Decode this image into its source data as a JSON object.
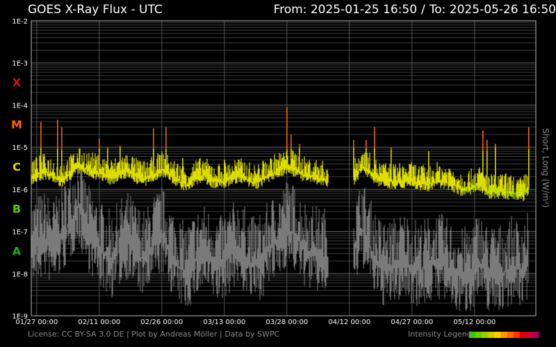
{
  "header": {
    "title": "GOES X-Ray Flux - UTC",
    "from_label": "From:",
    "from_value": "2025-01-25 16:50",
    "to_label": "To:",
    "to_value": "2025-05-26 16:50"
  },
  "footer": {
    "license": "License: CC BY-SA 3.0 DE | Plot by Andreas Möller | Data by SWPC",
    "legend_label": "Intensity Legend"
  },
  "colors": {
    "short_wave": "#7a7a7a",
    "class_A": "#22aa22",
    "class_B": "#66cc00",
    "class_C": "#dddd00",
    "class_M": "#ff6600",
    "class_X": "#dd1111",
    "legend": [
      "#33cc00",
      "#66cc00",
      "#99cc00",
      "#cccc00",
      "#ffcc00",
      "#ff9900",
      "#ff6600",
      "#ff3300",
      "#dd0000",
      "#cc0033",
      "#aa0055"
    ]
  },
  "chart_data": {
    "type": "line",
    "ylabel": "Short, Long (W/m²)",
    "y_scale": "log",
    "ylim": [
      1e-09,
      0.01
    ],
    "y_ticks": [
      "1E-2",
      "1E-3",
      "1E-4",
      "1E-5",
      "1E-6",
      "1E-7",
      "1E-8",
      "1E-9"
    ],
    "flare_classes": [
      {
        "label": "X",
        "flux": 0.00035
      },
      {
        "label": "M",
        "flux": 3.5e-05
      },
      {
        "label": "C",
        "flux": 3.5e-06
      },
      {
        "label": "B",
        "flux": 3.5e-07
      },
      {
        "label": "A",
        "flux": 3.5e-08
      }
    ],
    "x_ticks": [
      "01/27 00:00",
      "02/11 00:00",
      "02/26 00:00",
      "03/13 00:00",
      "03/28 00:00",
      "04/12 00:00",
      "04/27 00:00",
      "05/12 00:00"
    ],
    "x_tick_days": [
      "2025-01-27",
      "2025-02-11",
      "2025-02-26",
      "2025-03-13",
      "2025-03-28",
      "2025-04-12",
      "2025-04-27",
      "2025-05-12"
    ],
    "xlim": [
      "2025-01-25",
      "2025-05-26"
    ],
    "grid": true,
    "series": [
      {
        "channel": "long",
        "x": [
          "2025-01-25",
          "2025-01-27",
          "2025-01-29",
          "2025-01-31",
          "2025-02-02",
          "2025-02-04",
          "2025-02-06",
          "2025-02-08",
          "2025-02-10",
          "2025-02-12",
          "2025-02-14",
          "2025-02-16",
          "2025-02-18",
          "2025-02-20",
          "2025-02-22",
          "2025-02-24",
          "2025-02-26",
          "2025-02-28",
          "2025-03-02",
          "2025-03-04",
          "2025-03-06",
          "2025-03-08",
          "2025-03-10",
          "2025-03-12",
          "2025-03-14",
          "2025-03-16",
          "2025-03-18",
          "2025-03-20",
          "2025-03-22",
          "2025-03-24",
          "2025-03-26",
          "2025-03-28",
          "2025-03-30",
          "2025-04-01",
          "2025-04-03",
          "2025-04-05",
          "2025-04-07",
          "2025-04-09",
          "2025-04-11",
          "2025-04-13",
          "2025-04-15",
          "2025-04-17",
          "2025-04-19",
          "2025-04-21",
          "2025-04-23",
          "2025-04-25",
          "2025-04-27",
          "2025-04-29",
          "2025-05-01",
          "2025-05-03",
          "2025-05-05",
          "2025-05-07",
          "2025-05-09",
          "2025-05-11",
          "2025-05-13",
          "2025-05-15",
          "2025-05-17",
          "2025-05-19",
          "2025-05-21",
          "2025-05-23",
          "2025-05-25"
        ],
        "y": [
          1.8e-06,
          2.2e-06,
          2.6e-06,
          2e-06,
          1.6e-06,
          2.4e-06,
          3.5e-06,
          3e-06,
          2.6e-06,
          2.2e-06,
          1.9e-06,
          2.4e-06,
          2.8e-06,
          2e-06,
          1.7e-06,
          2.2e-06,
          3e-06,
          2.2e-06,
          1.6e-06,
          1.3e-06,
          1.8e-06,
          2.2e-06,
          1.6e-06,
          1.5e-06,
          1.7e-06,
          2.1e-06,
          1.8e-06,
          1.4e-06,
          1.7e-06,
          2.2e-06,
          2.8e-06,
          3.4e-06,
          3e-06,
          2.2e-06,
          2e-06,
          1.8e-06,
          1.6e-06,
          null,
          null,
          1.8e-06,
          3.5e-06,
          2.6e-06,
          1.7e-06,
          1.6e-06,
          1.5e-06,
          1.6e-06,
          1.6e-06,
          1.4e-06,
          1.3e-06,
          1.6e-06,
          1.5e-06,
          1.3e-06,
          1e-06,
          1.1e-06,
          1.3e-06,
          9e-07,
          8.5e-07,
          9e-07,
          8e-07,
          7e-07,
          1e-06
        ],
        "peaks": [
          {
            "x": "2025-01-28",
            "y": 4e-05
          },
          {
            "x": "2025-02-01",
            "y": 4.5e-05
          },
          {
            "x": "2025-02-02",
            "y": 3e-05
          },
          {
            "x": "2025-02-11",
            "y": 1.6e-05
          },
          {
            "x": "2025-02-13",
            "y": 1e-05
          },
          {
            "x": "2025-02-16",
            "y": 1.1e-05
          },
          {
            "x": "2025-02-24",
            "y": 2.8e-05
          },
          {
            "x": "2025-02-27",
            "y": 3e-05
          },
          {
            "x": "2025-03-03",
            "y": 5.5e-06
          },
          {
            "x": "2025-03-13",
            "y": 5e-06
          },
          {
            "x": "2025-03-28",
            "y": 9e-05
          },
          {
            "x": "2025-03-29",
            "y": 2e-05
          },
          {
            "x": "2025-03-31",
            "y": 1.2e-05
          },
          {
            "x": "2025-04-13",
            "y": 1.5e-05
          },
          {
            "x": "2025-04-16",
            "y": 1.5e-05
          },
          {
            "x": "2025-04-18",
            "y": 3e-05
          },
          {
            "x": "2025-04-22",
            "y": 1e-05
          },
          {
            "x": "2025-05-01",
            "y": 8e-06
          },
          {
            "x": "2025-05-14",
            "y": 2.5e-05
          },
          {
            "x": "2025-05-15",
            "y": 1.5e-05
          },
          {
            "x": "2025-05-17",
            "y": 1.2e-05
          },
          {
            "x": "2025-05-25",
            "y": 3e-05
          }
        ]
      },
      {
        "channel": "short",
        "x": [
          "2025-01-25",
          "2025-01-27",
          "2025-01-29",
          "2025-01-31",
          "2025-02-02",
          "2025-02-04",
          "2025-02-06",
          "2025-02-08",
          "2025-02-10",
          "2025-02-12",
          "2025-02-14",
          "2025-02-16",
          "2025-02-18",
          "2025-02-20",
          "2025-02-22",
          "2025-02-24",
          "2025-02-26",
          "2025-02-28",
          "2025-03-02",
          "2025-03-04",
          "2025-03-06",
          "2025-03-08",
          "2025-03-10",
          "2025-03-12",
          "2025-03-14",
          "2025-03-16",
          "2025-03-18",
          "2025-03-20",
          "2025-03-22",
          "2025-03-24",
          "2025-03-26",
          "2025-03-28",
          "2025-03-30",
          "2025-04-01",
          "2025-04-03",
          "2025-04-05",
          "2025-04-07",
          "2025-04-09",
          "2025-04-11",
          "2025-04-13",
          "2025-04-15",
          "2025-04-17",
          "2025-04-19",
          "2025-04-21",
          "2025-04-23",
          "2025-04-25",
          "2025-04-27",
          "2025-04-29",
          "2025-05-01",
          "2025-05-03",
          "2025-05-05",
          "2025-05-07",
          "2025-05-09",
          "2025-05-11",
          "2025-05-13",
          "2025-05-15",
          "2025-05-17",
          "2025-05-19",
          "2025-05-21",
          "2025-05-23",
          "2025-05-25"
        ],
        "y": [
          3e-08,
          5e-08,
          6e-08,
          4e-08,
          8e-08,
          1.5e-07,
          4e-07,
          1e-07,
          5e-08,
          3e-08,
          2e-08,
          4e-08,
          6e-08,
          3e-08,
          2e-08,
          5e-08,
          8e-08,
          3e-08,
          1.5e-08,
          1e-08,
          2e-08,
          3e-08,
          2e-08,
          1.5e-08,
          2.5e-08,
          4e-08,
          2.5e-08,
          1.5e-08,
          2e-08,
          4e-08,
          6e-08,
          1.2e-07,
          8e-08,
          4e-08,
          3e-08,
          2.5e-08,
          2.5e-08,
          null,
          null,
          3e-08,
          1.2e-07,
          4e-08,
          1.5e-08,
          1.2e-08,
          1.5e-08,
          2e-08,
          1.5e-08,
          1.2e-08,
          1.5e-08,
          2e-08,
          1.5e-08,
          1e-08,
          8e-09,
          1e-08,
          2e-08,
          1e-08,
          1e-08,
          1e-08,
          1.5e-08,
          1.2e-08,
          2e-08
        ]
      }
    ]
  }
}
